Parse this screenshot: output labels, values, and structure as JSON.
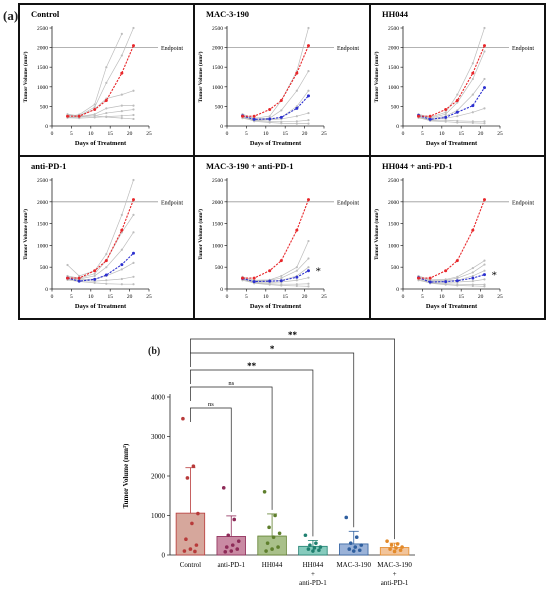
{
  "labels": {
    "panel_a": "(a)",
    "panel_b": "(b)"
  },
  "colors": {
    "red": "#e8272b",
    "blue": "#2b2fcf",
    "grey": "#bdbdbd",
    "endpoint": "#9a9a9a",
    "frame": "#111111"
  },
  "chart_data": [
    {
      "type": "line",
      "title": "Control",
      "xlabel": "Days of Treatment",
      "ylabel": "Tumor Volume (mm³)",
      "xlim": [
        0,
        25
      ],
      "ylim": [
        0,
        2500
      ],
      "xticks": [
        "0",
        "5",
        "10",
        "15",
        "20",
        "25"
      ],
      "yticks": [
        "0",
        "500",
        "1000",
        "1500",
        "2000",
        "2500"
      ],
      "endpoint": {
        "label": "Endpoint",
        "value": 2000
      },
      "x": [
        4,
        7,
        11,
        14,
        18,
        21
      ],
      "series": [
        {
          "color": "red",
          "values": [
            250,
            250,
            420,
            650,
            1350,
            2050
          ]
        },
        {
          "color": "grey",
          "values": [
            280,
            260,
            480,
            1100,
            1800,
            2500
          ]
        },
        {
          "color": "grey",
          "values": [
            240,
            290,
            550,
            1500,
            2350,
            null
          ]
        },
        {
          "color": "grey",
          "values": [
            300,
            260,
            430,
            700,
            800,
            900
          ]
        },
        {
          "color": "grey",
          "values": [
            260,
            240,
            300,
            450,
            520,
            520
          ]
        },
        {
          "color": "grey",
          "values": [
            220,
            230,
            260,
            330,
            380,
            420
          ]
        },
        {
          "color": "grey",
          "values": [
            210,
            200,
            220,
            240,
            260,
            280
          ]
        },
        {
          "color": "grey",
          "values": [
            270,
            250,
            260,
            230,
            200,
            180
          ]
        }
      ]
    },
    {
      "type": "line",
      "title": "MAC-3-190",
      "xlabel": "Days of Treatment",
      "ylabel": "Tumor Volume (mm³)",
      "xlim": [
        0,
        25
      ],
      "ylim": [
        0,
        2500
      ],
      "xticks": [
        "0",
        "5",
        "10",
        "15",
        "20",
        "25"
      ],
      "yticks": [
        "0",
        "500",
        "1000",
        "1500",
        "2000",
        "2500"
      ],
      "endpoint": {
        "label": "Endpoint",
        "value": 2000
      },
      "x": [
        4,
        7,
        11,
        14,
        18,
        21
      ],
      "series": [
        {
          "color": "red",
          "values": [
            250,
            250,
            420,
            650,
            1350,
            2050
          ]
        },
        {
          "color": "blue",
          "values": [
            260,
            170,
            180,
            220,
            450,
            770
          ]
        },
        {
          "color": "grey",
          "values": [
            300,
            200,
            250,
            650,
            1400,
            2500
          ]
        },
        {
          "color": "grey",
          "values": [
            260,
            180,
            200,
            400,
            900,
            1400
          ]
        },
        {
          "color": "grey",
          "values": [
            240,
            160,
            170,
            220,
            500,
            900
          ]
        },
        {
          "color": "grey",
          "values": [
            220,
            150,
            160,
            180,
            250,
            330
          ]
        },
        {
          "color": "grey",
          "values": [
            200,
            140,
            120,
            110,
            120,
            150
          ]
        },
        {
          "color": "grey",
          "values": [
            230,
            120,
            90,
            70,
            60,
            60
          ]
        }
      ]
    },
    {
      "type": "line",
      "title": "HH044",
      "xlabel": "Days of Treatment",
      "ylabel": "Tumor Volume (mm³)",
      "xlim": [
        0,
        25
      ],
      "ylim": [
        0,
        2500
      ],
      "xticks": [
        "0",
        "5",
        "10",
        "15",
        "20",
        "25"
      ],
      "yticks": [
        "0",
        "500",
        "1000",
        "1500",
        "2000",
        "2500"
      ],
      "endpoint": {
        "label": "Endpoint",
        "value": 2000
      },
      "x": [
        4,
        7,
        11,
        14,
        18,
        21
      ],
      "series": [
        {
          "color": "red",
          "values": [
            250,
            250,
            420,
            650,
            1350,
            2050
          ]
        },
        {
          "color": "blue",
          "values": [
            270,
            170,
            220,
            350,
            520,
            980
          ]
        },
        {
          "color": "grey",
          "values": [
            300,
            220,
            350,
            800,
            1600,
            2500
          ]
        },
        {
          "color": "grey",
          "values": [
            280,
            200,
            300,
            600,
            1200,
            1900
          ]
        },
        {
          "color": "grey",
          "values": [
            250,
            180,
            250,
            400,
            800,
            1200
          ]
        },
        {
          "color": "grey",
          "values": [
            230,
            160,
            200,
            250,
            350,
            450
          ]
        },
        {
          "color": "grey",
          "values": [
            210,
            140,
            150,
            130,
            120,
            120
          ]
        },
        {
          "color": "grey",
          "values": [
            240,
            130,
            110,
            90,
            80,
            70
          ]
        }
      ]
    },
    {
      "type": "line",
      "title": "anti-PD-1",
      "xlabel": "Days of Treatment",
      "ylabel": "Tumor Volume (mm³)",
      "xlim": [
        0,
        25
      ],
      "ylim": [
        0,
        2500
      ],
      "xticks": [
        "0",
        "5",
        "10",
        "15",
        "20",
        "25"
      ],
      "yticks": [
        "0",
        "500",
        "1000",
        "1500",
        "2000",
        "2500"
      ],
      "endpoint": {
        "label": "Endpoint",
        "value": 2000
      },
      "x": [
        4,
        7,
        11,
        14,
        18,
        21
      ],
      "series": [
        {
          "color": "red",
          "values": [
            250,
            250,
            420,
            650,
            1350,
            2050
          ]
        },
        {
          "color": "blue",
          "values": [
            250,
            180,
            220,
            320,
            560,
            820
          ]
        },
        {
          "color": "grey",
          "values": [
            550,
            300,
            420,
            800,
            1700,
            2500
          ]
        },
        {
          "color": "grey",
          "values": [
            300,
            250,
            350,
            650,
            1300,
            1700
          ]
        },
        {
          "color": "grey",
          "values": [
            280,
            230,
            300,
            500,
            900,
            1300
          ]
        },
        {
          "color": "grey",
          "values": [
            260,
            210,
            230,
            300,
            450,
            600
          ]
        },
        {
          "color": "grey",
          "values": [
            230,
            190,
            180,
            200,
            230,
            280
          ]
        },
        {
          "color": "grey",
          "values": [
            210,
            170,
            140,
            120,
            110,
            110
          ]
        }
      ]
    },
    {
      "type": "line",
      "title": "MAC-3-190 + anti-PD-1",
      "xlabel": "Days of Treatment",
      "ylabel": "Tumor Volume (mm³)",
      "xlim": [
        0,
        25
      ],
      "ylim": [
        0,
        2500
      ],
      "xticks": [
        "0",
        "5",
        "10",
        "15",
        "20",
        "25"
      ],
      "yticks": [
        "0",
        "500",
        "1000",
        "1500",
        "2000",
        "2500"
      ],
      "endpoint": {
        "label": "Endpoint",
        "value": 2000
      },
      "annotation": "*",
      "x": [
        4,
        7,
        11,
        14,
        18,
        21
      ],
      "series": [
        {
          "color": "red",
          "values": [
            250,
            250,
            420,
            650,
            1350,
            2050
          ]
        },
        {
          "color": "blue",
          "values": [
            240,
            170,
            180,
            190,
            270,
            420
          ]
        },
        {
          "color": "grey",
          "values": [
            280,
            200,
            210,
            300,
            500,
            1100
          ]
        },
        {
          "color": "grey",
          "values": [
            260,
            180,
            200,
            250,
            420,
            700
          ]
        },
        {
          "color": "grey",
          "values": [
            240,
            160,
            170,
            200,
            300,
            500
          ]
        },
        {
          "color": "grey",
          "values": [
            220,
            150,
            150,
            160,
            200,
            260
          ]
        },
        {
          "color": "grey",
          "values": [
            200,
            140,
            120,
            110,
            110,
            120
          ]
        },
        {
          "color": "grey",
          "values": [
            230,
            130,
            100,
            80,
            70,
            60
          ]
        }
      ]
    },
    {
      "type": "line",
      "title": "HH044 + anti-PD-1",
      "xlabel": "Days of Treatment",
      "ylabel": "Tumor Volume (mm³)",
      "xlim": [
        0,
        25
      ],
      "ylim": [
        0,
        2500
      ],
      "xticks": [
        "0",
        "5",
        "10",
        "15",
        "20",
        "25"
      ],
      "yticks": [
        "0",
        "500",
        "1000",
        "1500",
        "2000",
        "2500"
      ],
      "endpoint": {
        "label": "Endpoint",
        "value": 2000
      },
      "annotation": "*",
      "x": [
        4,
        7,
        11,
        14,
        18,
        21
      ],
      "series": [
        {
          "color": "red",
          "values": [
            250,
            250,
            420,
            650,
            1350,
            2050
          ]
        },
        {
          "color": "blue",
          "values": [
            260,
            160,
            170,
            190,
            250,
            330
          ]
        },
        {
          "color": "grey",
          "values": [
            300,
            210,
            220,
            280,
            480,
            650
          ]
        },
        {
          "color": "grey",
          "values": [
            280,
            190,
            200,
            250,
            380,
            560
          ]
        },
        {
          "color": "grey",
          "values": [
            250,
            170,
            180,
            200,
            300,
            420
          ]
        },
        {
          "color": "grey",
          "values": [
            220,
            150,
            150,
            160,
            180,
            220
          ]
        },
        {
          "color": "grey",
          "values": [
            200,
            140,
            120,
            110,
            100,
            100
          ]
        },
        {
          "color": "grey",
          "values": [
            230,
            130,
            100,
            80,
            70,
            60
          ]
        }
      ]
    },
    {
      "type": "bar",
      "ylabel": "Tumor Volume (mm³)",
      "ylim": [
        0,
        4000
      ],
      "yticks": [
        "0",
        "1000",
        "2000",
        "3000",
        "4000"
      ],
      "categories": [
        "Control",
        "anti-PD-1",
        "HH044",
        "HH044\n+\nanti-PD-1",
        "MAC-3-190",
        "MAC-3-190\n+\nanti-PD-1"
      ],
      "values": [
        1060,
        470,
        480,
        220,
        280,
        190
      ],
      "error": [
        1150,
        520,
        560,
        150,
        320,
        110
      ],
      "bar_colors": [
        "#d6a79c",
        "#c98aa3",
        "#a9c08a",
        "#86cbbd",
        "#9ab2d8",
        "#f2c49a"
      ],
      "point_colors": [
        "#b83a3a",
        "#8e2b58",
        "#5f7f2d",
        "#1f8070",
        "#2f5f9f",
        "#e38a2a"
      ],
      "points": [
        [
          3450,
          2250,
          1950,
          1050,
          800,
          400,
          250,
          150,
          100,
          90
        ],
        [
          1700,
          900,
          500,
          350,
          250,
          200,
          150,
          100,
          80
        ],
        [
          1600,
          1000,
          700,
          550,
          450,
          300,
          200,
          150,
          100
        ],
        [
          500,
          300,
          250,
          200,
          180,
          150,
          120,
          100
        ],
        [
          950,
          450,
          300,
          250,
          200,
          150,
          120,
          100
        ],
        [
          350,
          280,
          250,
          200,
          180,
          150,
          120,
          90
        ]
      ],
      "comparisons": [
        {
          "from": 0,
          "to": 1,
          "label": "ns"
        },
        {
          "from": 0,
          "to": 2,
          "label": "ns"
        },
        {
          "from": 0,
          "to": 3,
          "label": "**"
        },
        {
          "from": 0,
          "to": 4,
          "label": "*"
        },
        {
          "from": 0,
          "to": 5,
          "label": "**"
        }
      ]
    }
  ]
}
